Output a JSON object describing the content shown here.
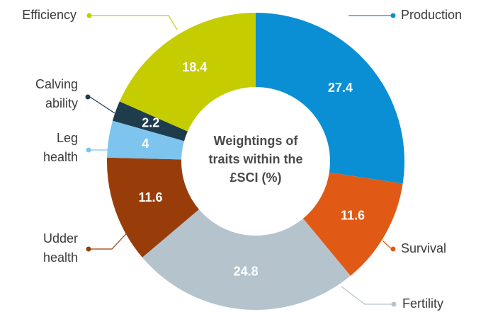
{
  "chart_data": {
    "type": "donut",
    "title": "Weightings of traits within the £SCI (%)",
    "categories": [
      "Production",
      "Survival",
      "Fertility",
      "Udder health",
      "Leg health",
      "Calving ability",
      "Efficiency"
    ],
    "values": [
      27.4,
      11.6,
      24.8,
      11.6,
      4,
      2.2,
      18.4
    ],
    "colors": [
      "#0a8fd4",
      "#e05a16",
      "#b5c3cc",
      "#983d0a",
      "#7dc4ee",
      "#1e3c4c",
      "#c5cd00"
    ]
  }
}
